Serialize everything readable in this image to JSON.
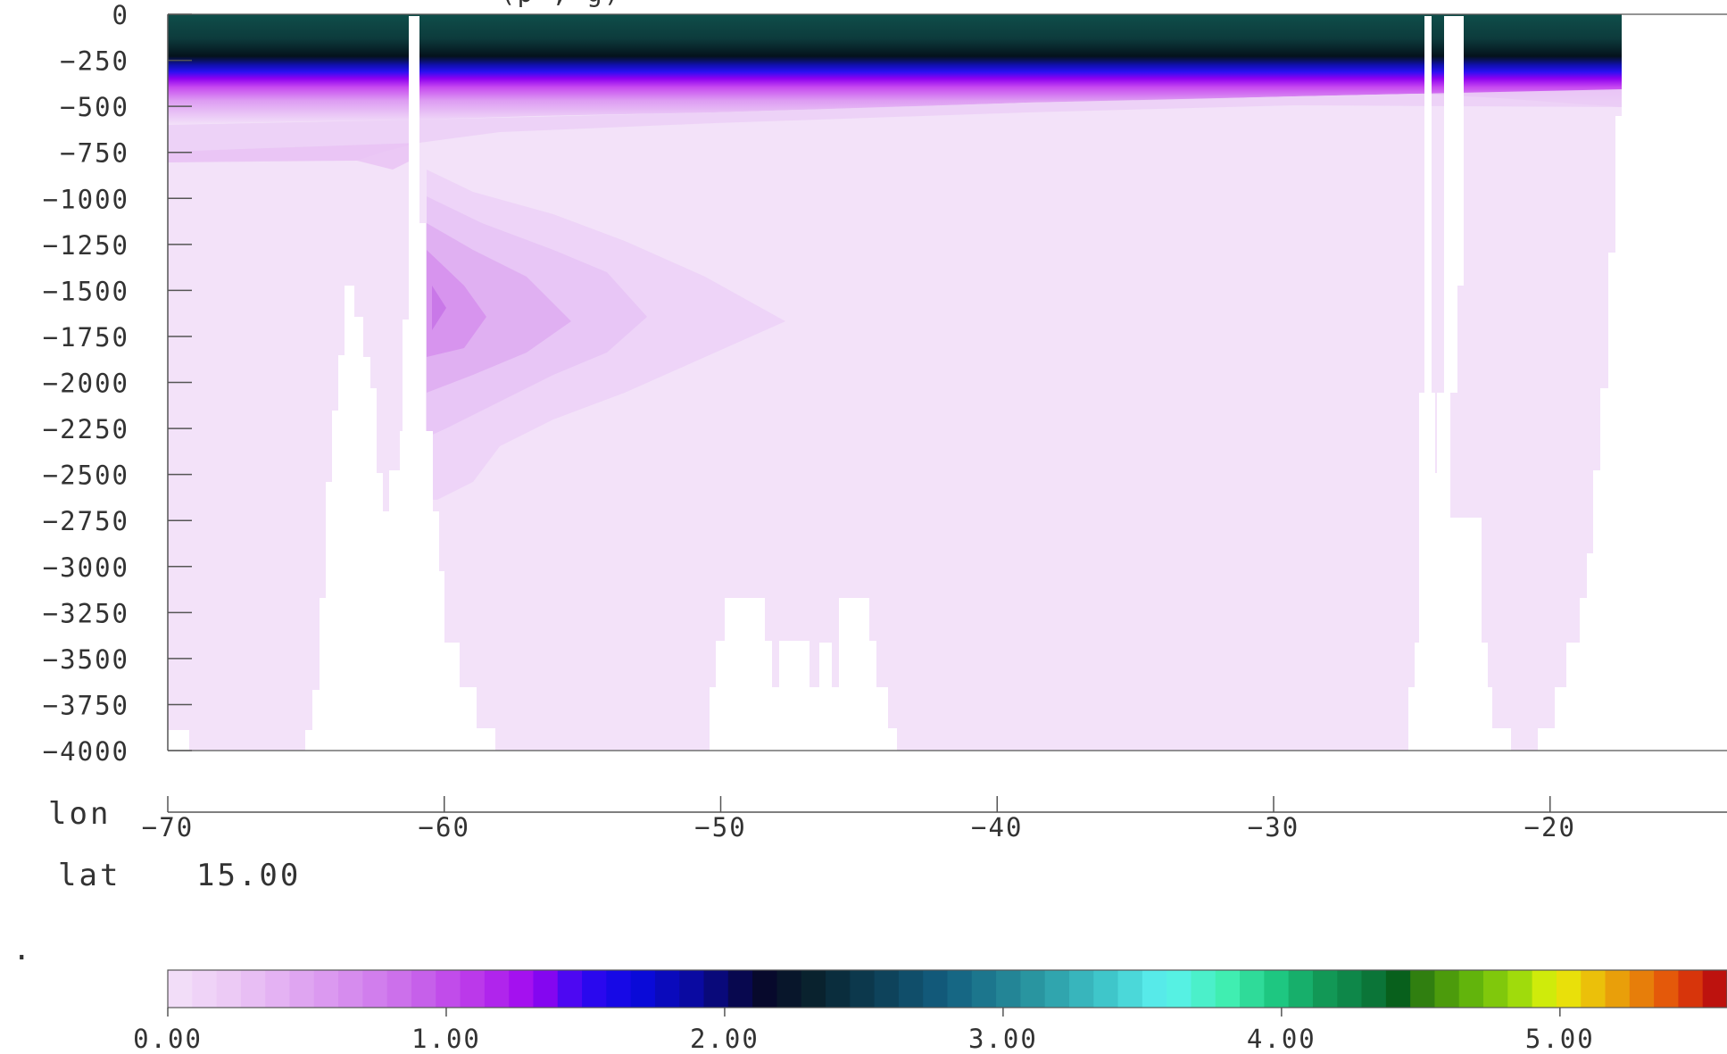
{
  "chart_data": {
    "type": "heatmap",
    "title_partial": "(p   ,   g)",
    "ylim": [
      -4000,
      0
    ],
    "yticks": [
      0,
      -250,
      -500,
      -750,
      -1000,
      -1250,
      -1500,
      -1750,
      -2000,
      -2250,
      -2500,
      -2750,
      -3000,
      -3250,
      -3500,
      -3750,
      -4000
    ],
    "xlim": [
      -70,
      -13.6
    ],
    "xticks": [
      -70,
      -60,
      -50,
      -40,
      -30,
      -20
    ],
    "x_axis_name": "lon",
    "lat_label": "lat",
    "lat_value": "15.00",
    "colorbar": {
      "range": [
        0,
        5.6
      ],
      "levels": 64,
      "tick_values": [
        0,
        1,
        2,
        3,
        4,
        5
      ],
      "tick_labels": [
        "0.00",
        "1.00",
        "2.00",
        "3.00",
        "4.00",
        "5.00"
      ]
    },
    "dot_marker": "."
  }
}
